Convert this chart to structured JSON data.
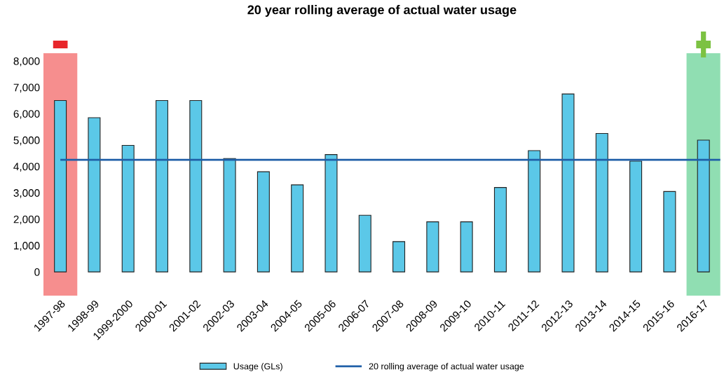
{
  "chart_data": {
    "type": "bar",
    "title": "20 year rolling average of actual water usage",
    "categories": [
      "1997-98",
      "1998-99",
      "1999-2000",
      "2000-01",
      "2001-02",
      "2002-03",
      "2003-04",
      "2004-05",
      "2005-06",
      "2006-07",
      "2007-08",
      "2008-09",
      "2009-10",
      "2010-11",
      "2011-12",
      "2012-13",
      "2013-14",
      "2014-15",
      "2015-16",
      "2016-17"
    ],
    "series": [
      {
        "name": "Usage (GLs)",
        "color": "#5bc8e8",
        "values": [
          6500,
          5850,
          4800,
          6500,
          6500,
          4300,
          3800,
          3300,
          4450,
          2150,
          1150,
          1900,
          1900,
          3200,
          4600,
          6750,
          5250,
          4200,
          3050,
          5000
        ]
      }
    ],
    "ylim": [
      -900,
      8300
    ],
    "yticks": [
      0,
      {
        "value": 1000,
        "label": "1,000"
      },
      {
        "value": 2000,
        "label": "2,000"
      },
      {
        "value": 3000,
        "label": "3,000"
      },
      {
        "value": 4000,
        "label": "4,000"
      },
      {
        "value": 5000,
        "label": "5,000"
      },
      {
        "value": 6000,
        "label": "6,000"
      },
      {
        "value": 7000,
        "label": "7,000"
      },
      {
        "value": 8000,
        "label": "8,000"
      }
    ],
    "ref_lines": [
      {
        "axis": "y",
        "value": 4250,
        "label": "20 rolling average of actual water usage",
        "color": "#1f5fa8"
      }
    ],
    "bands": [
      {
        "axis": "x",
        "from": "1997-98",
        "to": "1997-98",
        "color": "#f47a7a"
      },
      {
        "axis": "x",
        "from": "2016-17",
        "to": "2016-17",
        "color": "#7dd8a5"
      }
    ],
    "grid": false,
    "legend": "bottom"
  }
}
